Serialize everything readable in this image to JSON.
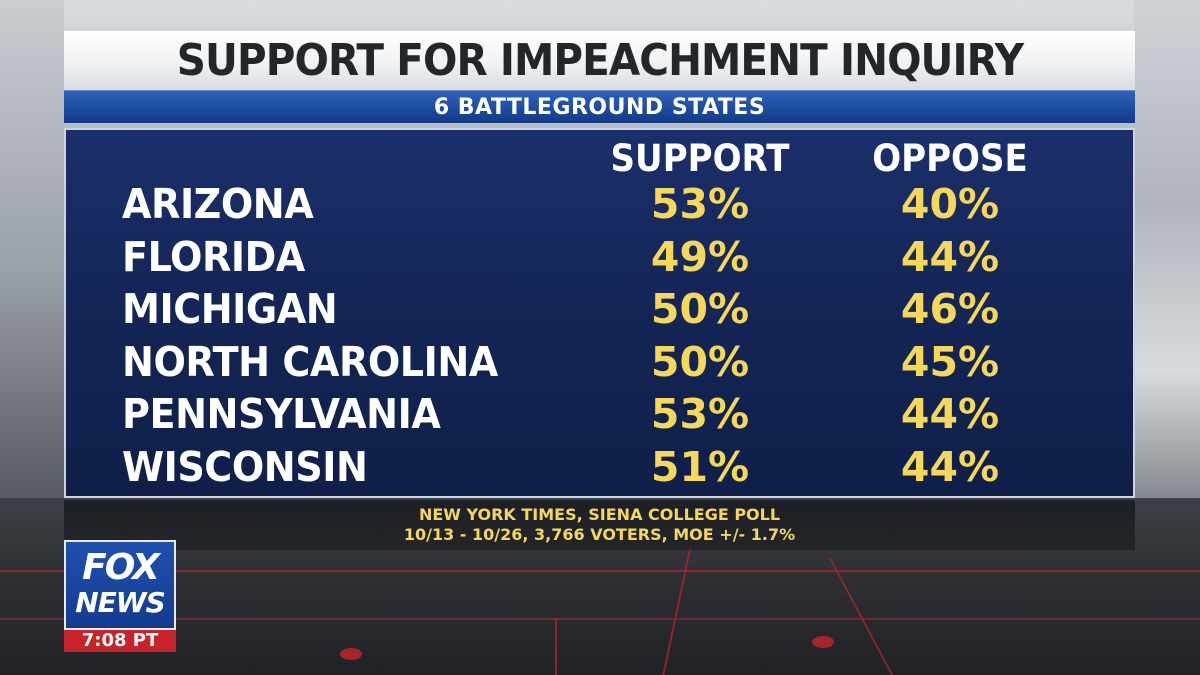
{
  "graphic": {
    "title": "SUPPORT FOR IMPEACHMENT INQUIRY",
    "subtitle": "6 BATTLEGROUND STATES",
    "source_line1": "NEW YORK TIMES, SIENA COLLEGE POLL",
    "source_line2": "10/13 - 10/26, 3,766 VOTERS, MOE +/- 1.7%"
  },
  "logo": {
    "line1": "FOX",
    "line2": "NEWS",
    "time": "7:08 PT"
  },
  "colors": {
    "panel": "#142657",
    "title_bar": "#ffffff",
    "subtitle_bar": "#1c4a9e",
    "value_text": "#f5d75a",
    "clock_bg": "#c8232b"
  },
  "chart_data": {
    "type": "table",
    "title": "SUPPORT FOR IMPEACHMENT INQUIRY",
    "subtitle": "6 BATTLEGROUND STATES",
    "columns": [
      "SUPPORT",
      "OPPOSE"
    ],
    "rows": [
      {
        "state": "ARIZONA",
        "support": "53%",
        "oppose": "40%"
      },
      {
        "state": "FLORIDA",
        "support": "49%",
        "oppose": "44%"
      },
      {
        "state": "MICHIGAN",
        "support": "50%",
        "oppose": "46%"
      },
      {
        "state": "NORTH CAROLINA",
        "support": "50%",
        "oppose": "45%"
      },
      {
        "state": "PENNSYLVANIA",
        "support": "53%",
        "oppose": "44%"
      },
      {
        "state": "WISCONSIN",
        "support": "51%",
        "oppose": "44%"
      }
    ]
  }
}
